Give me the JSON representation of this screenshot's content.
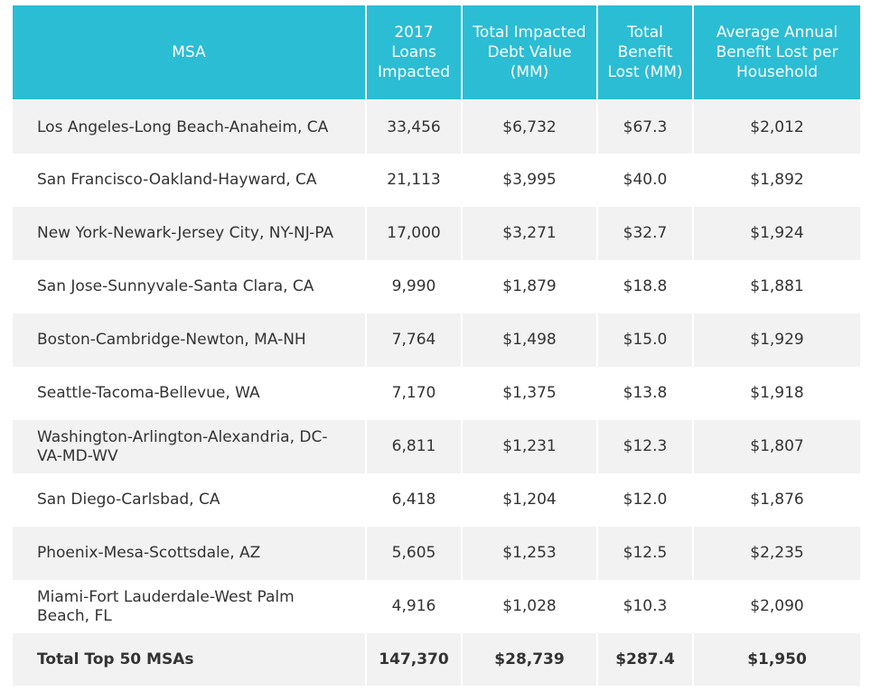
{
  "table": {
    "headers": [
      "MSA",
      "2017 Loans Impacted",
      "Total Impacted Debt Value (MM)",
      "Total Benefit Lost (MM)",
      "Average Annual Benefit Lost per Household"
    ],
    "rows": [
      [
        "Los Angeles-Long Beach-Anaheim, CA",
        "33,456",
        "$6,732",
        "$67.3",
        "$2,012"
      ],
      [
        "San Francisco-Oakland-Hayward, CA",
        "21,113",
        "$3,995",
        "$40.0",
        "$1,892"
      ],
      [
        "New York-Newark-Jersey City, NY-NJ-PA",
        "17,000",
        "$3,271",
        "$32.7",
        "$1,924"
      ],
      [
        "San Jose-Sunnyvale-Santa Clara, CA",
        "9,990",
        "$1,879",
        "$18.8",
        "$1,881"
      ],
      [
        "Boston-Cambridge-Newton, MA-NH",
        "7,764",
        "$1,498",
        "$15.0",
        "$1,929"
      ],
      [
        "Seattle-Tacoma-Bellevue, WA",
        "7,170",
        "$1,375",
        "$13.8",
        "$1,918"
      ],
      [
        "Washington-Arlington-Alexandria, DC-VA-MD-WV",
        "6,811",
        "$1,231",
        "$12.3",
        "$1,807"
      ],
      [
        "San Diego-Carlsbad, CA",
        "6,418",
        "$1,204",
        "$12.0",
        "$1,876"
      ],
      [
        "Phoenix-Mesa-Scottsdale, AZ",
        "5,605",
        "$1,253",
        "$12.5",
        "$2,235"
      ],
      [
        "Miami-Fort Lauderdale-West Palm Beach, FL",
        "4,916",
        "$1,028",
        "$10.3",
        "$2,090"
      ]
    ],
    "total": [
      "Total Top 50 MSAs",
      "147,370",
      "$28,739",
      "$287.4",
      "$1,950"
    ]
  }
}
